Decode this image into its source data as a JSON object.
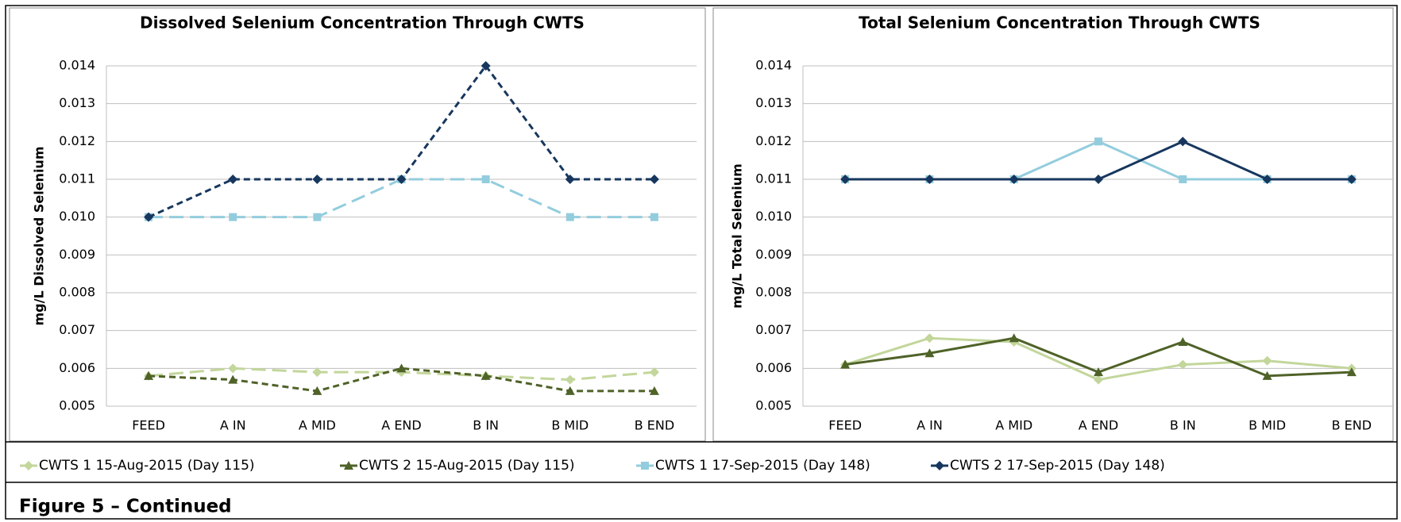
{
  "chart_data": [
    {
      "type": "line",
      "title": "Dissolved Selenium Concentration Through CWTS",
      "y_label": "mg/L Dissolved Selenium",
      "line_style": "dashed",
      "grid": true,
      "categories": [
        "FEED",
        "A IN",
        "A MID",
        "A END",
        "B IN",
        "B MID",
        "B END"
      ],
      "ylim": [
        0.005,
        0.014
      ],
      "yticks": [
        0.005,
        0.006,
        0.007,
        0.008,
        0.009,
        {
          "value": 0.01,
          "label": "0.010"
        },
        0.011,
        0.012,
        0.013,
        0.014
      ],
      "series": [
        {
          "name": "CWTS 1 15-Aug-2015 (Day 115)",
          "color": "#c3d69b",
          "marker": "diamond",
          "values": [
            0.0058,
            0.006,
            0.0059,
            0.0059,
            0.0058,
            0.0057,
            0.0059
          ]
        },
        {
          "name": "CWTS 2 15-Aug-2015 (Day 115)",
          "color": "#4f6228",
          "marker": "triangle",
          "values": [
            0.0058,
            0.0057,
            0.0054,
            0.006,
            0.0058,
            0.0054,
            0.0054
          ]
        },
        {
          "name": "CWTS 1 17-Sep-2015 (Day 148)",
          "color": "#93cddd",
          "marker": "square",
          "values": [
            0.01,
            0.01,
            0.01,
            0.011,
            0.011,
            0.01,
            0.01
          ]
        },
        {
          "name": "CWTS 2 17-Sep-2015 (Day 148)",
          "color": "#17375e",
          "marker": "diamond",
          "values": [
            0.01,
            0.011,
            0.011,
            0.011,
            0.014,
            0.011,
            0.011
          ]
        }
      ]
    },
    {
      "type": "line",
      "title": "Total Selenium Concentration Through CWTS",
      "y_label": "mg/L Total Selenium",
      "line_style": "solid",
      "grid": true,
      "categories": [
        "FEED",
        "A IN",
        "A MID",
        "A END",
        "B IN",
        "B MID",
        "B END"
      ],
      "ylim": [
        0.005,
        0.014
      ],
      "yticks": [
        0.005,
        0.006,
        0.007,
        0.008,
        0.009,
        {
          "value": 0.01,
          "label": "0.010"
        },
        0.011,
        0.012,
        0.013,
        0.014
      ],
      "series": [
        {
          "name": "CWTS 1 15-Aug-2015 (Day 115)",
          "color": "#c3d69b",
          "marker": "diamond",
          "values": [
            0.0061,
            0.0068,
            0.0067,
            0.0057,
            0.0061,
            0.0062,
            0.006
          ]
        },
        {
          "name": "CWTS 2 15-Aug-2015 (Day 115)",
          "color": "#4f6228",
          "marker": "triangle",
          "values": [
            0.0061,
            0.0064,
            0.0068,
            0.0059,
            0.0067,
            0.0058,
            0.0059
          ]
        },
        {
          "name": "CWTS 1 17-Sep-2015 (Day 148)",
          "color": "#93cddd",
          "marker": "square",
          "values": [
            0.011,
            0.011,
            0.011,
            0.012,
            0.011,
            0.011,
            0.011
          ]
        },
        {
          "name": "CWTS 2 17-Sep-2015 (Day 148)",
          "color": "#17375e",
          "marker": "diamond",
          "values": [
            0.011,
            0.011,
            0.011,
            0.011,
            0.012,
            0.011,
            0.011
          ]
        }
      ]
    }
  ],
  "caption": "Figure 5 – Continued"
}
